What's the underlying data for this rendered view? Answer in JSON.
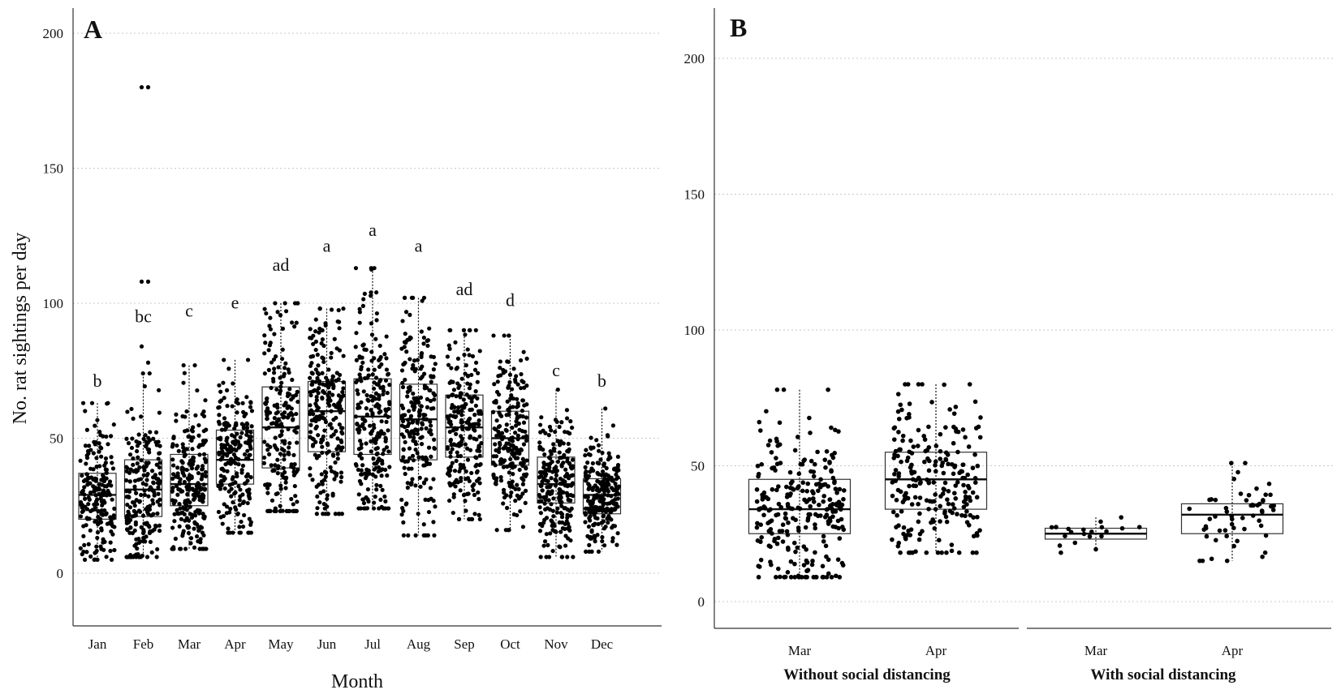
{
  "chart_data": [
    {
      "type": "box-strip",
      "panel_label": "A",
      "xlabel": "Month",
      "ylabel": "No. rat sightings per day",
      "ylim": [
        0,
        200
      ],
      "yticks": [
        0,
        50,
        100,
        150,
        200
      ],
      "grid": true,
      "categories": [
        "Jan",
        "Feb",
        "Mar",
        "Apr",
        "May",
        "Jun",
        "Jul",
        "Aug",
        "Sep",
        "Oct",
        "Nov",
        "Dec"
      ],
      "letters": [
        "b",
        "bc",
        "c",
        "e",
        "ad",
        "a",
        "a",
        "a",
        "ad",
        "d",
        "c",
        "b"
      ],
      "letter_values": [
        69,
        93,
        95,
        98,
        112,
        119,
        125,
        119,
        103,
        99,
        73,
        69
      ],
      "boxes": [
        {
          "q1": 20,
          "median": 29,
          "q3": 37,
          "min": 5,
          "max": 63,
          "n": 200
        },
        {
          "q1": 21,
          "median": 31,
          "q3": 42,
          "min": 6,
          "max": 74,
          "n": 210,
          "outliers": [
            180,
            180,
            108,
            108,
            84,
            78
          ]
        },
        {
          "q1": 25,
          "median": 33,
          "q3": 44,
          "min": 9,
          "max": 77,
          "n": 230
        },
        {
          "q1": 33,
          "median": 42,
          "q3": 53,
          "min": 15,
          "max": 79,
          "n": 210
        },
        {
          "q1": 39,
          "median": 54,
          "q3": 69,
          "min": 23,
          "max": 100,
          "n": 210
        },
        {
          "q1": 45,
          "median": 60,
          "q3": 71,
          "min": 22,
          "max": 98,
          "n": 230
        },
        {
          "q1": 44,
          "median": 58,
          "q3": 72,
          "min": 24,
          "max": 113,
          "n": 230,
          "outliers": [
            104
          ]
        },
        {
          "q1": 42,
          "median": 57,
          "q3": 70,
          "min": 14,
          "max": 102,
          "n": 220
        },
        {
          "q1": 43,
          "median": 54,
          "q3": 66,
          "min": 20,
          "max": 90,
          "n": 220
        },
        {
          "q1": 40,
          "median": 50,
          "q3": 60,
          "min": 16,
          "max": 88,
          "n": 210
        },
        {
          "q1": 26,
          "median": 33,
          "q3": 43,
          "min": 6,
          "max": 68,
          "n": 230
        },
        {
          "q1": 22,
          "median": 29,
          "q3": 35,
          "min": 8,
          "max": 61,
          "n": 230
        }
      ]
    },
    {
      "type": "box-strip",
      "panel_label": "B",
      "ylim": [
        0,
        200
      ],
      "yticks": [
        0,
        50,
        100,
        150,
        200
      ],
      "grid": true,
      "groups": [
        {
          "label": "Without social distancing",
          "categories": [
            "Mar",
            "Apr"
          ]
        },
        {
          "label": "With social distancing",
          "categories": [
            "Mar",
            "Apr"
          ]
        }
      ],
      "boxes": [
        {
          "group": 0,
          "category": "Mar",
          "q1": 25,
          "median": 34,
          "q3": 45,
          "min": 9,
          "max": 78,
          "n": 260
        },
        {
          "group": 0,
          "category": "Apr",
          "q1": 34,
          "median": 45,
          "q3": 55,
          "min": 18,
          "max": 80,
          "n": 230
        },
        {
          "group": 1,
          "category": "Mar",
          "q1": 23,
          "median": 25,
          "q3": 27,
          "min": 18,
          "max": 31,
          "n": 18
        },
        {
          "group": 1,
          "category": "Apr",
          "q1": 25,
          "median": 32,
          "q3": 36,
          "min": 15,
          "max": 51,
          "n": 55
        }
      ]
    }
  ]
}
